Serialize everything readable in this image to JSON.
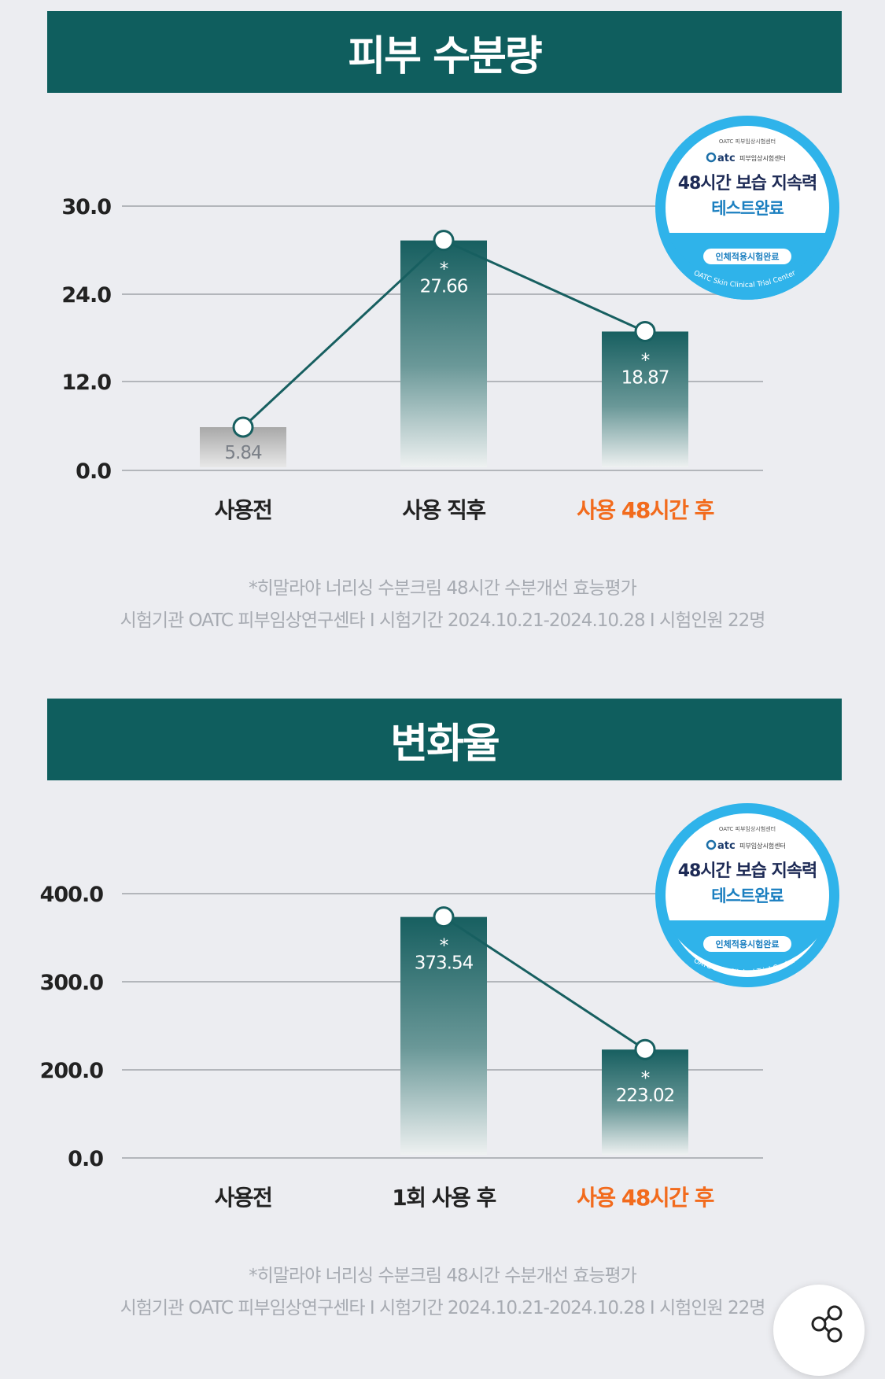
{
  "chart_data": [
    {
      "type": "bar",
      "title": "피부 수분량",
      "categories": [
        "사용전",
        "사용 직후",
        "사용 48시간 후"
      ],
      "values": [
        5.84,
        27.66,
        18.87
      ],
      "value_labels": [
        "5.84",
        "27.66",
        "18.87"
      ],
      "significance": [
        "",
        "*",
        "*"
      ],
      "yticks": [
        "30.0",
        "24.0",
        "12.0",
        "0.0"
      ],
      "grid": true,
      "line_overlay": true,
      "highlight_category_color": "#f26b1d",
      "bar_color": "#175f60",
      "baseline_bar_color": "#a8a8a8",
      "footnote": [
        "*히말라야 너리싱 수분크림 48시간 수분개선 효능평가",
        "시험기관 OATC 피부임상연구센타 I 시험기간 2024.10.21-2024.10.28 I 시험인원 22명"
      ]
    },
    {
      "type": "bar",
      "title": "변화율",
      "categories": [
        "사용전",
        "1회 사용 후",
        "사용 48시간 후"
      ],
      "values": [
        null,
        373.54,
        223.02
      ],
      "value_labels": [
        "",
        "373.54",
        "223.02"
      ],
      "significance": [
        "",
        "*",
        "*"
      ],
      "yticks": [
        "400.0",
        "300.0",
        "200.0",
        "0.0"
      ],
      "grid": true,
      "line_overlay": true,
      "highlight_category_color": "#f26b1d",
      "bar_color": "#175f60",
      "footnote": [
        "*히말라야 너리싱 수분크림 48시간 수분개선 효능평가",
        "시험기관 OATC 피부임상연구센타 I 시험기간 2024.10.21-2024.10.28 I 시험인원 22명"
      ]
    }
  ],
  "badge": {
    "small_top": "OATC 피부임상시험센터",
    "brand": "Oatc",
    "brand_sub": "피부임상시험센터",
    "line1": "48시간 보습 지속력",
    "line2": "테스트완료",
    "pill": "인체적용시험완료",
    "arc_text": "OATC Skin Clinical Trial Center"
  },
  "share": {
    "icon": "share-icon"
  }
}
